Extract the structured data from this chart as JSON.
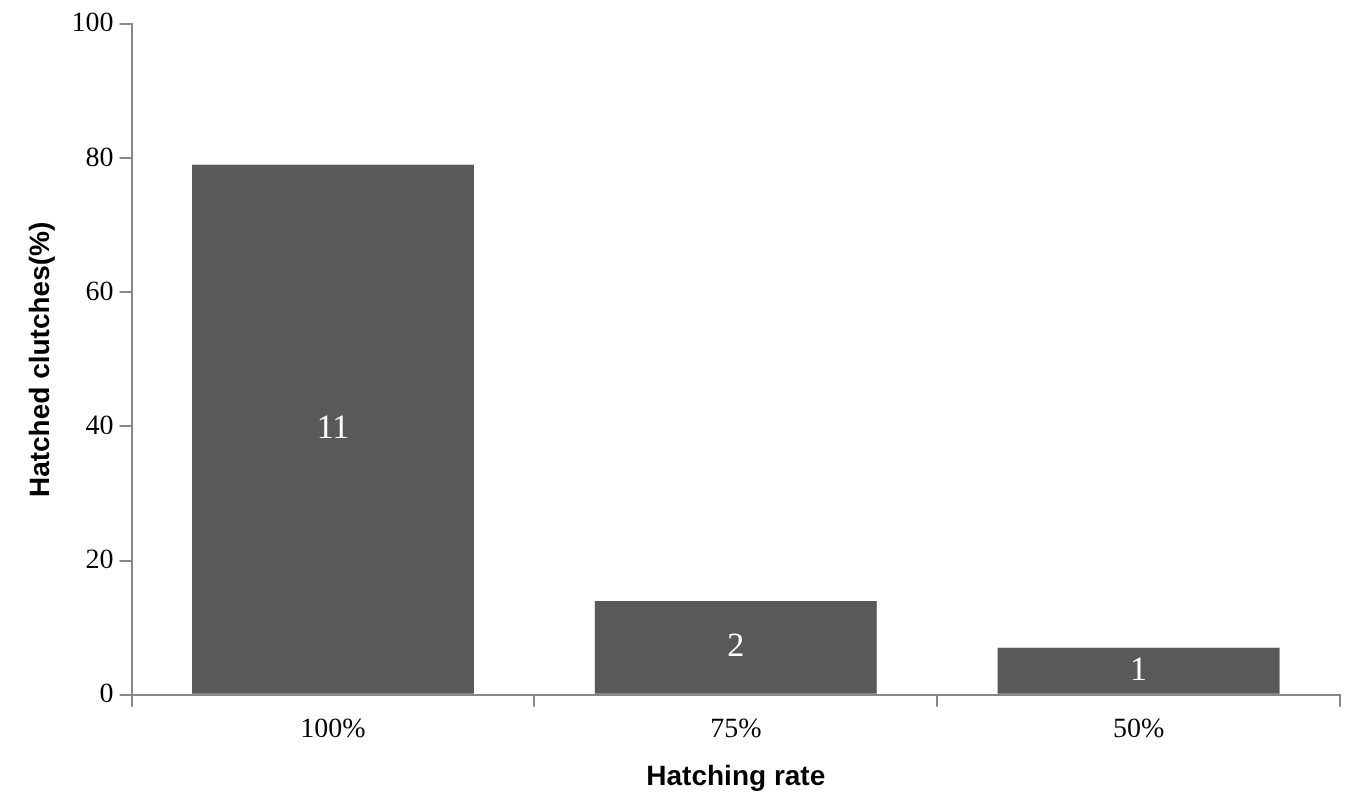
{
  "chart_data": {
    "type": "bar",
    "xlabel": "Hatching rate",
    "ylabel": "Hatched clutches(%)",
    "categories": [
      "100%",
      "75%",
      "50%"
    ],
    "values": [
      79,
      14,
      7
    ],
    "annotations": [
      "11",
      "2",
      "1"
    ],
    "color": "#595959",
    "ylim": [
      0,
      100
    ],
    "yticks": [
      0,
      20,
      40,
      60,
      80,
      100
    ],
    "grid": false,
    "legend": false
  }
}
